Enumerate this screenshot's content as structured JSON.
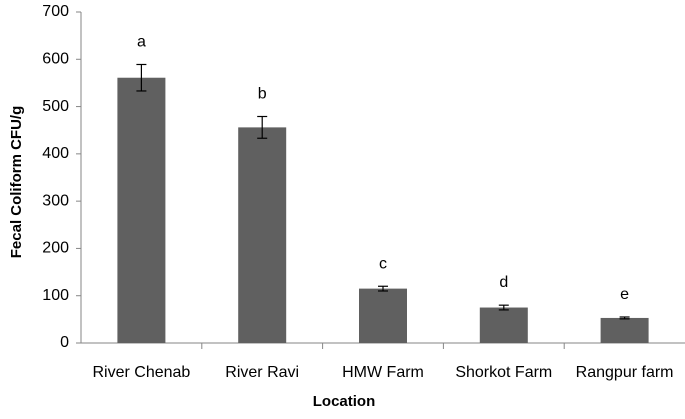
{
  "chart_data": {
    "type": "bar",
    "title": "",
    "xlabel": "Location",
    "ylabel": "Fecal Coliform CFU/g",
    "ylim": [
      0,
      700
    ],
    "yticks": [
      0,
      100,
      200,
      300,
      400,
      500,
      600,
      700
    ],
    "grid": false,
    "legend": "none",
    "categories": [
      "River Chenab",
      "River Ravi",
      "HMW Farm",
      "Shorkot Farm",
      "Rangpur farm"
    ],
    "values": [
      561,
      456,
      115,
      75,
      53
    ],
    "error": [
      28,
      23,
      5,
      5,
      2
    ],
    "significance": [
      "a",
      "b",
      "c",
      "d",
      "e"
    ],
    "colors": {
      "bar": "#606060",
      "axis": "#868686",
      "error_bar": "#000000"
    }
  }
}
